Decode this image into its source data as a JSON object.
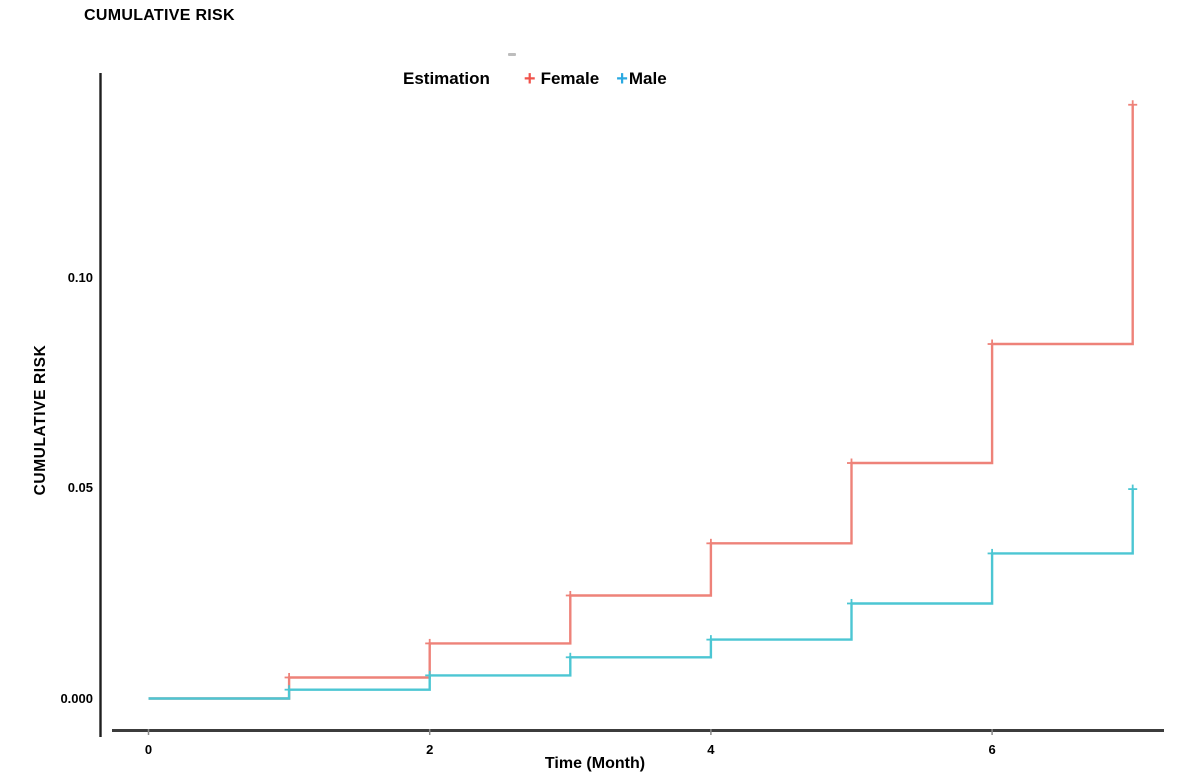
{
  "header": {
    "title": "CUMULATIVE RISK"
  },
  "legend": {
    "title": "Estimation",
    "items": [
      {
        "label": "Female",
        "marker": "plus-marker",
        "marker_glyph": "+",
        "marker_color": "#f0534b"
      },
      {
        "label": "Male",
        "marker": "plus-marker",
        "marker_glyph": "+",
        "marker_color": "#2ba9e1"
      }
    ]
  },
  "chart_data": {
    "type": "line",
    "line_style": "step-post",
    "title": "CUMULATIVE RISK",
    "xlabel": "Time (Month)",
    "ylabel": "CUMULATIVE RISK",
    "legend_title": "Estimation",
    "legend_position": "top",
    "grid": false,
    "xlim": [
      0,
      7.35
    ],
    "ylim": [
      0,
      0.1475
    ],
    "x_ticks": [
      {
        "value": 0,
        "label": "0"
      },
      {
        "value": 2,
        "label": "2"
      },
      {
        "value": 4,
        "label": "4"
      },
      {
        "value": 6,
        "label": "6"
      }
    ],
    "y_ticks": [
      {
        "value": 0.0,
        "label": "0.000"
      },
      {
        "value": 0.05,
        "label": "0.05"
      },
      {
        "value": 0.1,
        "label": "0.10"
      }
    ],
    "axis_color": "#2a2a2a",
    "series": [
      {
        "name": "Female",
        "color": "#ee8279",
        "marker": "plus",
        "months": [
          0,
          1,
          2,
          3,
          4,
          5,
          6,
          7
        ],
        "cumulative_risk": [
          0,
          0.005,
          0.0131,
          0.0245,
          0.0369,
          0.056,
          0.0843,
          0.1412
        ]
      },
      {
        "name": "Male",
        "color": "#4cc6d3",
        "marker": "plus",
        "months": [
          0,
          1,
          2,
          3,
          4,
          5,
          6,
          7
        ],
        "cumulative_risk": [
          0,
          0.0021,
          0.0055,
          0.0098,
          0.014,
          0.0226,
          0.0345,
          0.0498
        ]
      }
    ]
  }
}
